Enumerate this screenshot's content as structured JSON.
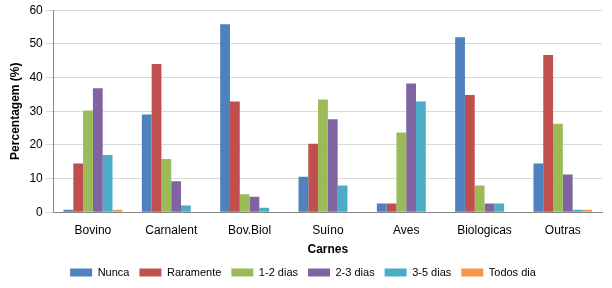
{
  "chart_data": {
    "type": "bar",
    "x_label": "Carnes",
    "y_label": "Percentagem (%)",
    "categories": [
      "Bovino",
      "Carnalent",
      "Bov.Biol",
      "Suíno",
      "Aves",
      "Biologicas",
      "Outras"
    ],
    "series": [
      {
        "name": "Nunca",
        "color": "#4F81BD",
        "values": [
          0.7,
          29,
          55.8,
          10.5,
          2.6,
          52,
          14.5
        ]
      },
      {
        "name": "Raramente",
        "color": "#C0504D",
        "values": [
          14.5,
          44,
          32.9,
          20.3,
          2.6,
          34.8,
          46.7
        ]
      },
      {
        "name": "1-2 dias",
        "color": "#9BBB59",
        "values": [
          30.2,
          15.8,
          5.3,
          33.5,
          23.7,
          7.9,
          26.3
        ]
      },
      {
        "name": "2-3 dias",
        "color": "#8064A2",
        "values": [
          36.8,
          9.2,
          4.6,
          27.6,
          38.2,
          2.6,
          11.2
        ]
      },
      {
        "name": "3-5 dias",
        "color": "#4BACC6",
        "values": [
          17,
          2,
          1.3,
          7.9,
          32.9,
          2.6,
          0.7
        ]
      },
      {
        "name": "Todos dia",
        "color": "#F79646",
        "values": [
          0.7,
          0,
          0,
          0,
          0,
          0,
          0.7
        ]
      }
    ],
    "ylim": [
      0,
      60
    ],
    "yticks": [
      0,
      10,
      20,
      30,
      40,
      50,
      60
    ],
    "grid": true,
    "legend": "bottom"
  }
}
